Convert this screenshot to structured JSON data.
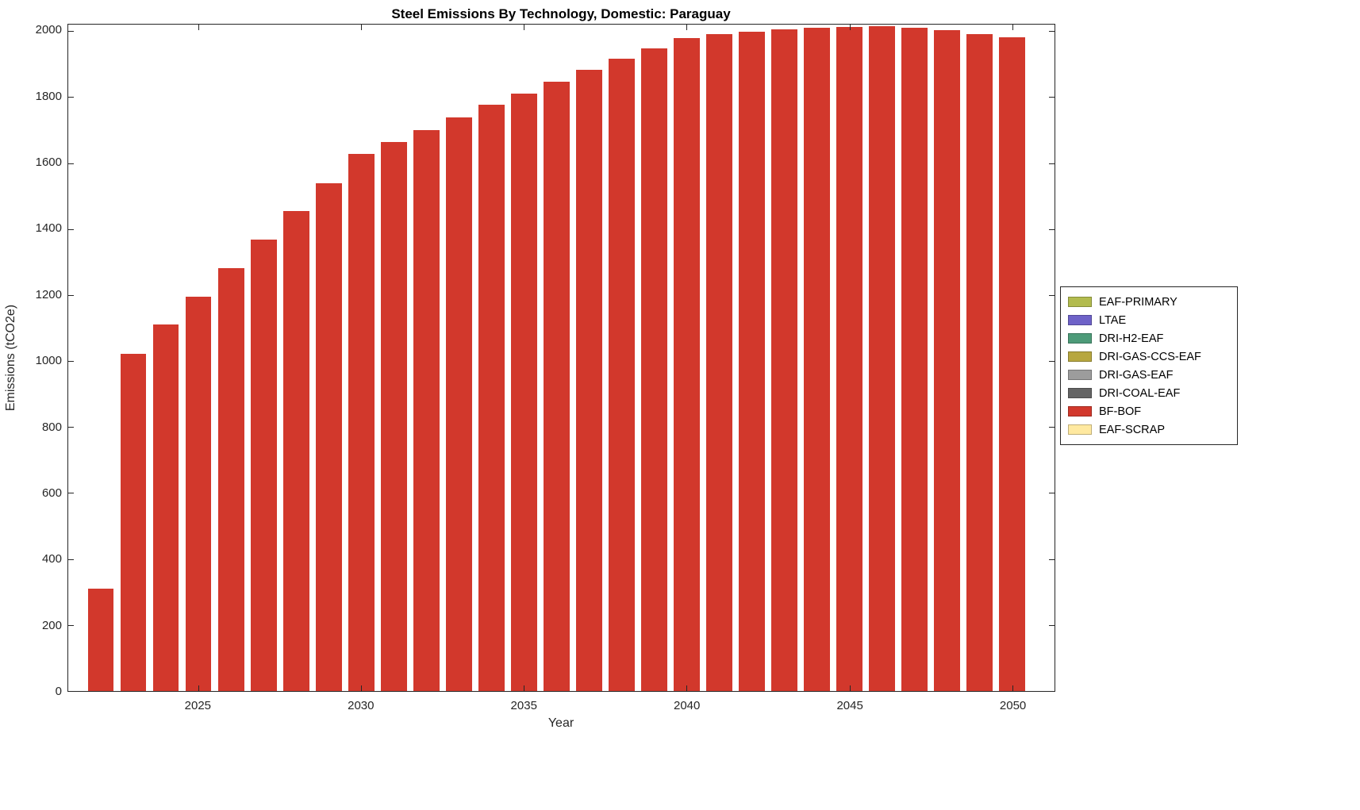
{
  "figure": {
    "background": "#ffffff",
    "axis_color": "#262626"
  },
  "chart_data": {
    "type": "bar",
    "title": "Steel Emissions By Technology, Domestic: Paraguay",
    "xlabel": "Year",
    "ylabel": "Emissions (tCO2e)",
    "x": [
      2022,
      2023,
      2024,
      2025,
      2026,
      2027,
      2028,
      2029,
      2030,
      2031,
      2032,
      2033,
      2034,
      2035,
      2036,
      2037,
      2038,
      2039,
      2040,
      2041,
      2042,
      2043,
      2044,
      2045,
      2046,
      2047,
      2048,
      2049,
      2050
    ],
    "series": [
      {
        "name": "BF-BOF",
        "color": "#d2382c",
        "values": [
          310,
          1022,
          1110,
          1196,
          1281,
          1368,
          1454,
          1540,
          1627,
          1663,
          1701,
          1738,
          1776,
          1812,
          1848,
          1883,
          1916,
          1948,
          1980,
          1991,
          1999,
          2006,
          2011,
          2014,
          2015,
          2010,
          2004,
          1992,
          1981
        ]
      }
    ],
    "bar_width": 0.8,
    "xlim": [
      2021.0,
      2051.3
    ],
    "ylim": [
      0,
      2020
    ],
    "xticks": [
      2025,
      2030,
      2035,
      2040,
      2045,
      2050
    ],
    "yticks": [
      0,
      200,
      400,
      600,
      800,
      1000,
      1200,
      1400,
      1600,
      1800,
      2000
    ],
    "grid": false,
    "legend_position": "right-outside",
    "legend": [
      {
        "label": "EAF-PRIMARY",
        "color": "#b2bb4e"
      },
      {
        "label": "LTAE",
        "color": "#6e62c8"
      },
      {
        "label": "DRI-H2-EAF",
        "color": "#4d9b79"
      },
      {
        "label": "DRI-GAS-CCS-EAF",
        "color": "#b7a73f"
      },
      {
        "label": "DRI-GAS-EAF",
        "color": "#9c9c9c"
      },
      {
        "label": "DRI-COAL-EAF",
        "color": "#646464"
      },
      {
        "label": "BF-BOF",
        "color": "#d2382c"
      },
      {
        "label": "EAF-SCRAP",
        "color": "#ffe9a0"
      }
    ]
  }
}
